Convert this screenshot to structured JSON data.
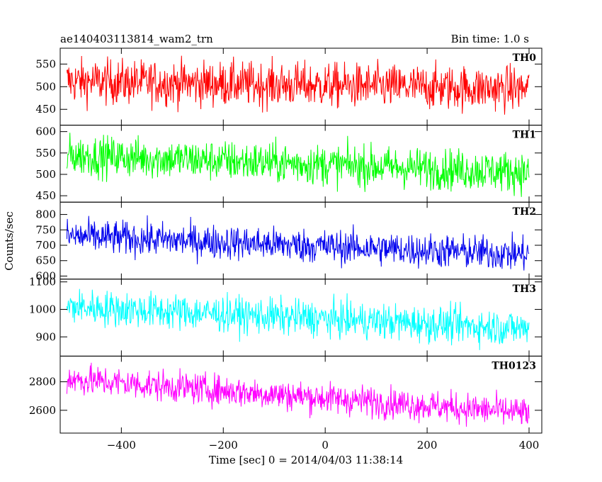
{
  "chart_data": {
    "type": "line",
    "title": "ae140403113814_wam2_trn",
    "bin_time": "Bin time: 1.0 s",
    "xlabel": "Time [sec] 0 = 2014/04/03 11:38:14",
    "ylabel": "Counts/sec",
    "xlim": [
      -520,
      425
    ],
    "x_ticks": [
      -400,
      -200,
      0,
      200,
      400
    ],
    "x_tick_labels": [
      "−400",
      "−200",
      "0",
      "200",
      "400"
    ],
    "x_range": [
      -507,
      400
    ],
    "grid": false,
    "panels": [
      {
        "name": "TH0",
        "color": "#ff0000",
        "ylim": [
          415,
          585
        ],
        "y_ticks": [
          450,
          500,
          550
        ],
        "y_tick_labels": [
          "450",
          "500",
          "550"
        ],
        "mean_start": 512,
        "mean_end": 495,
        "noise": 25,
        "spike_max": 585,
        "spike_min": 415
      },
      {
        "name": "TH1",
        "color": "#00ff00",
        "ylim": [
          435,
          615
        ],
        "y_ticks": [
          450,
          500,
          550,
          600
        ],
        "y_tick_labels": [
          "450",
          "500",
          "550",
          "600"
        ],
        "mean_start": 545,
        "mean_end": 505,
        "noise": 24,
        "spike_max": 610,
        "spike_min": 440
      },
      {
        "name": "TH2",
        "color": "#0000ee",
        "ylim": [
          590,
          840
        ],
        "y_ticks": [
          600,
          650,
          700,
          750,
          800
        ],
        "y_tick_labels": [
          "600",
          "650",
          "700",
          "750",
          "800"
        ],
        "mean_start": 730,
        "mean_end": 670,
        "noise": 28,
        "spike_max": 835,
        "spike_min": 600
      },
      {
        "name": "TH3",
        "color": "#00ffff",
        "ylim": [
          830,
          1110
        ],
        "y_ticks": [
          900,
          1000,
          1100
        ],
        "y_tick_labels": [
          "900",
          "1000",
          "1100"
        ],
        "mean_start": 1010,
        "mean_end": 930,
        "noise": 33,
        "spike_max": 1105,
        "spike_min": 845
      },
      {
        "name": "TH0123",
        "color": "#ff00ff",
        "ylim": [
          2440,
          2980
        ],
        "y_ticks": [
          2600,
          2800
        ],
        "y_tick_labels": [
          "2600",
          "2800"
        ],
        "mean_start": 2820,
        "mean_end": 2580,
        "noise": 55,
        "spike_max": 2975,
        "spike_min": 2450
      }
    ]
  }
}
